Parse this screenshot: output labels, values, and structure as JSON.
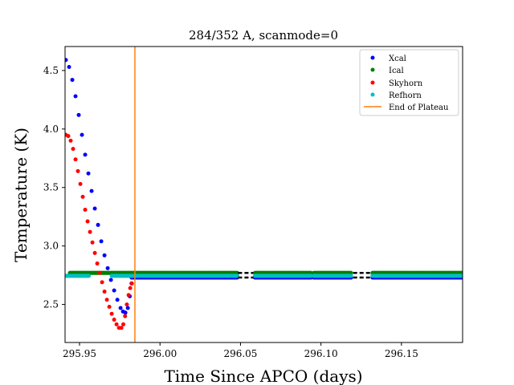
{
  "chart_data": {
    "type": "scatter",
    "title": "284/352 A, scanmode=0",
    "xlabel": "Time Since APCO (days)",
    "ylabel": "Temperature (K)",
    "xlim": [
      295.941,
      296.188
    ],
    "ylim": [
      2.175,
      4.705
    ],
    "xticks": [
      295.95,
      296.0,
      296.05,
      296.1,
      296.15
    ],
    "xtick_labels": [
      "295.95",
      "296.00",
      "296.05",
      "296.10",
      "296.15"
    ],
    "yticks": [
      2.5,
      3.0,
      3.5,
      4.0,
      4.5
    ],
    "ytick_labels": [
      "2.5",
      "3.0",
      "3.5",
      "4.0",
      "4.5"
    ],
    "grid": false,
    "legend_position": "top-right",
    "series": [
      {
        "name": "Xcal",
        "color": "#0000ff",
        "marker": "dot",
        "segments": [
          {
            "x": [
              295.9415,
              295.9435,
              295.9455,
              295.9475,
              295.9495,
              295.9515,
              295.9535,
              295.9555,
              295.9575,
              295.9595,
              295.9615,
              295.9635,
              295.9655,
              295.9675,
              295.9695,
              295.9715,
              295.9735,
              295.9755,
              295.977,
              295.9785,
              295.98,
              295.9812,
              295.9823
            ],
            "y": [
              4.59,
              4.53,
              4.42,
              4.28,
              4.12,
              3.95,
              3.78,
              3.62,
              3.47,
              3.32,
              3.18,
              3.04,
              2.92,
              2.81,
              2.71,
              2.62,
              2.54,
              2.47,
              2.44,
              2.43,
              2.47,
              2.57,
              2.68
            ]
          },
          {
            "x_range": [
              295.9823,
              296.048
            ],
            "y": 2.73
          },
          {
            "x_range": [
              296.059,
              296.094
            ],
            "y": 2.73
          },
          {
            "x_range": [
              296.0955,
              296.119
            ],
            "y": 2.73
          },
          {
            "x_range": [
              296.132,
              296.188
            ],
            "y": 2.73
          }
        ]
      },
      {
        "name": "Ical",
        "color": "#008000",
        "marker": "dot",
        "segments": [
          {
            "x_range": [
              295.944,
              296.048
            ],
            "y": 2.77
          },
          {
            "x_range": [
              296.059,
              296.094
            ],
            "y": 2.77
          },
          {
            "x_range": [
              296.0955,
              296.119
            ],
            "y": 2.77
          },
          {
            "x_range": [
              296.132,
              296.188
            ],
            "y": 2.77
          }
        ]
      },
      {
        "name": "Skyhorn",
        "color": "#ff0000",
        "marker": "dot",
        "segments": [
          {
            "x": [
              295.9415,
              295.943,
              295.9445,
              295.946,
              295.9475,
              295.949,
              295.9505,
              295.952,
              295.9535,
              295.955,
              295.9565,
              295.958,
              295.9595,
              295.961,
              295.9625,
              295.964,
              295.9655,
              295.967,
              295.9685,
              295.97,
              295.9715,
              295.973,
              295.9745,
              295.976,
              295.9772,
              295.9783,
              295.9794,
              295.9805,
              295.9815,
              295.9825
            ],
            "y": [
              3.95,
              3.94,
              3.9,
              3.83,
              3.74,
              3.64,
              3.53,
              3.42,
              3.31,
              3.21,
              3.12,
              3.03,
              2.94,
              2.85,
              2.77,
              2.69,
              2.61,
              2.54,
              2.48,
              2.42,
              2.37,
              2.33,
              2.3,
              2.3,
              2.33,
              2.4,
              2.5,
              2.58,
              2.64,
              2.68
            ]
          }
        ]
      },
      {
        "name": "Refhorn",
        "color": "#00bfbf",
        "marker": "dot",
        "segments": [
          {
            "x_range": [
              295.941,
              295.956
            ],
            "y": 2.745
          },
          {
            "x_range": [
              295.97,
              296.048
            ],
            "y": 2.745
          },
          {
            "x_range": [
              296.059,
              296.094
            ],
            "y": 2.745
          },
          {
            "x_range": [
              296.0955,
              296.119
            ],
            "y": 2.745
          },
          {
            "x_range": [
              296.132,
              296.188
            ],
            "y": 2.745
          }
        ]
      }
    ],
    "vline": {
      "name": "End of Plateau",
      "x": 295.9844,
      "color": "#ff7f0e"
    },
    "gap_markers": {
      "color": "#000000",
      "x_ranges": [
        [
          296.0485,
          296.058
        ],
        [
          296.12,
          296.131
        ]
      ]
    }
  }
}
